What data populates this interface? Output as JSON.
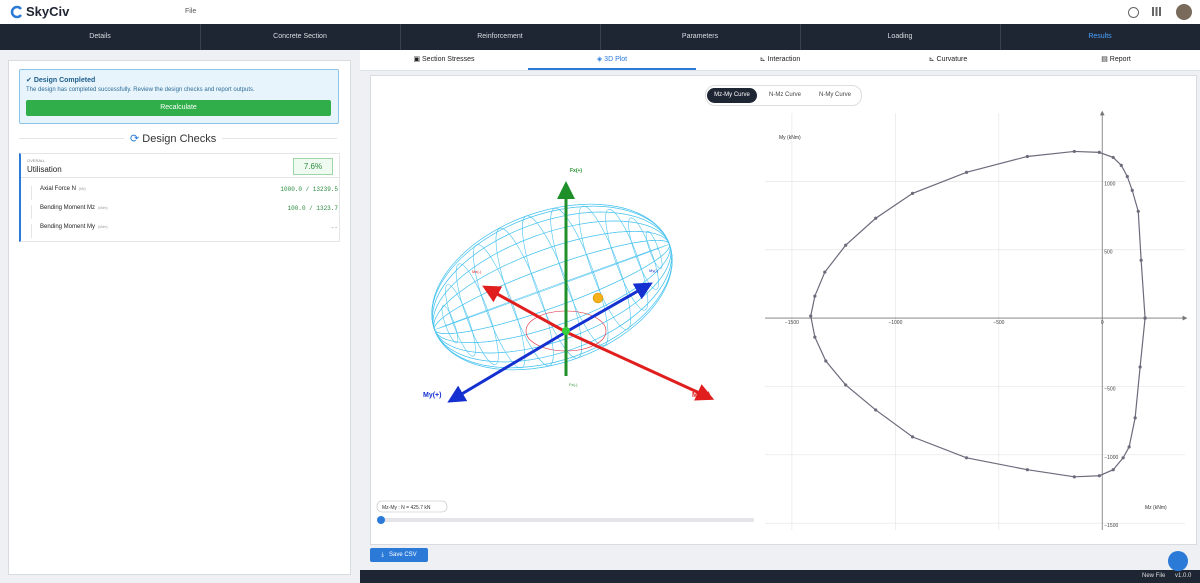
{
  "header": {
    "logo": "SkyCiv",
    "file_menu": "File"
  },
  "nav": {
    "steps": [
      "Details",
      "Concrete Section",
      "Reinforcement",
      "Parameters",
      "Loading",
      "Results"
    ]
  },
  "tabs": [
    "Section Stresses",
    "3D Plot",
    "Interaction",
    "Curvature",
    "Report"
  ],
  "curve_buttons": [
    "Mz-My Curve",
    "N-Mz Curve",
    "N-My Curve"
  ],
  "left_panel": {
    "alert_title": "Design Completed",
    "alert_text": "The design has completed successfully. Review the design checks and report outputs.",
    "recalculate": "Recalculate",
    "design_checks_title": "Design Checks",
    "overall": "OVERALL",
    "utilisation_label": "Utilisation",
    "utilisation_value": "7.6%",
    "checks": [
      {
        "label": "Axial Force N",
        "unit": "(kN)",
        "value": "1000.0 / 13239.5"
      },
      {
        "label": "Bending Moment Mz",
        "unit": "(kNm)",
        "value": "100.0 / 1323.7"
      },
      {
        "label": "Bending Moment My",
        "unit": "(kNm)",
        "value": "--"
      }
    ]
  },
  "plot3d": {
    "fx_pos": "Fx(+)",
    "fx_neg": "Fx(-)",
    "my_pos": "My(+)",
    "my_neg": "My(-)",
    "mz_pos": "Mz(+)",
    "mz_neg": "Mz(-)",
    "slider_label": "Mz-My : N = 425.7 kN"
  },
  "save_csv": "Save CSV",
  "footer": {
    "new_file": "New File",
    "version": "v1.0.0"
  },
  "chart_data": {
    "type": "line",
    "xlabel": "Mz (kNm)",
    "ylabel": "My (kNm)",
    "color": "#6e6a7c",
    "x": [
      207,
      188,
      174,
      145,
      121,
      92,
      53,
      -14,
      -135,
      -362,
      -656,
      -917,
      -1095,
      -1240,
      -1341,
      -1389,
      -1409,
      -1389,
      -1336,
      -1240,
      -1095,
      -917,
      -656,
      -362,
      -135,
      -14,
      53,
      101,
      130,
      159,
      183,
      207
    ],
    "values": [
      0,
      423,
      781,
      934,
      1036,
      1117,
      1175,
      1212,
      1219,
      1182,
      1066,
      912,
      730,
      533,
      336,
      161,
      15,
      -139,
      -314,
      -489,
      -672,
      -869,
      -1022,
      -1109,
      -1161,
      -1153,
      -1109,
      -1022,
      -942,
      -730,
      -358,
      0
    ],
    "xlim": [
      -1630,
      400
    ],
    "ylim": [
      -1550,
      1500
    ],
    "xticks": [
      {
        "value": -1500,
        "label": "−1500"
      },
      {
        "value": -1000,
        "label": "−1000"
      },
      {
        "value": -500,
        "label": "−500"
      },
      0
    ],
    "yticks": [
      {
        "value": -1500,
        "label": "−1500"
      },
      {
        "value": -1000,
        "label": "−1000"
      },
      {
        "value": -500,
        "label": "−500"
      },
      500,
      1000
    ],
    "grid": true
  }
}
